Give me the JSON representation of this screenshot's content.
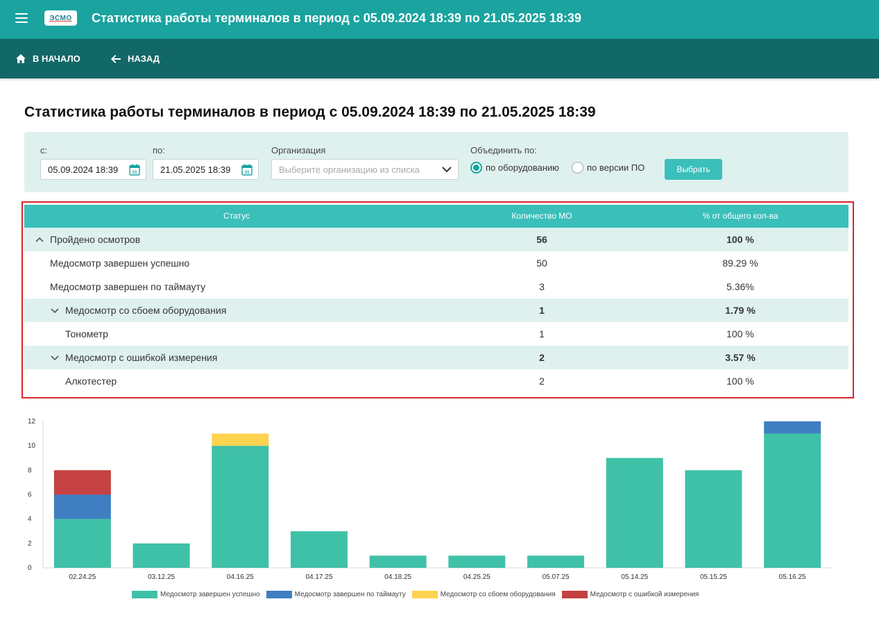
{
  "header": {
    "logo_text": "ЭСМО",
    "title": "Статистика работы терминалов в период с 05.09.2024 18:39 по 21.05.2025 18:39"
  },
  "nav": {
    "home_label": "В НАЧАЛО",
    "back_label": "НАЗАД"
  },
  "page": {
    "title": "Статистика работы терминалов в период с 05.09.2024 18:39 по 21.05.2025 18:39"
  },
  "filters": {
    "from_label": "с:",
    "from_value": "05.09.2024 18:39",
    "to_label": "по:",
    "to_value": "21.05.2025 18:39",
    "org_label": "Организация",
    "org_placeholder": "Выберите организацию из списка",
    "group_label": "Объединить по:",
    "radio_equipment": "по оборудованию",
    "radio_software": "по версии ПО",
    "selected": "по оборудованию",
    "submit_label": "Выбрать"
  },
  "table": {
    "headers": [
      "Статус",
      "Количество МО",
      "% от общего кол-ва"
    ],
    "rows": [
      {
        "name": "Пройдено осмотров",
        "count": "56",
        "percent": "100 %",
        "type": "group",
        "level": 0,
        "expanded": true
      },
      {
        "name": "Медосмотр завершен успешно",
        "count": "50",
        "percent": "89.29 %",
        "type": "item",
        "level": 1
      },
      {
        "name": "Медосмотр завершен по таймауту",
        "count": "3",
        "percent": "5.36%",
        "type": "item",
        "level": 1
      },
      {
        "name": "Медосмотр со сбоем оборудования",
        "count": "1",
        "percent": "1.79 %",
        "type": "group",
        "level": 1,
        "expanded": true
      },
      {
        "name": "Тонометр",
        "count": "1",
        "percent": "100 %",
        "type": "item",
        "level": 2
      },
      {
        "name": "Медосмотр с ошибкой измерения",
        "count": "2",
        "percent": "3.57 %",
        "type": "group",
        "level": 1,
        "expanded": true
      },
      {
        "name": "Алкотестер",
        "count": "2",
        "percent": "100 %",
        "type": "item",
        "level": 2
      }
    ]
  },
  "chart_data": {
    "type": "bar",
    "stacked": true,
    "categories": [
      "02.24.25",
      "03.12.25",
      "04.16.25",
      "04.17.25",
      "04.18.25",
      "04.25.25",
      "05.07.25",
      "05.14.25",
      "05.15.25",
      "05.16.25"
    ],
    "series": [
      {
        "name": "Медосмотр завершен успешно",
        "color": "#3fc1a8",
        "values": [
          4,
          2,
          10,
          3,
          1,
          1,
          1,
          9,
          8,
          11
        ]
      },
      {
        "name": "Медосмотр завершен по таймауту",
        "color": "#3f7fc1",
        "values": [
          2,
          0,
          0,
          0,
          0,
          0,
          0,
          0,
          0,
          1
        ]
      },
      {
        "name": "Медосмотр со сбоем оборудования",
        "color": "#ffd24f",
        "values": [
          0,
          0,
          1,
          0,
          0,
          0,
          0,
          0,
          0,
          0
        ]
      },
      {
        "name": "Медосмотр с ошибкой измерения",
        "color": "#c64141",
        "values": [
          2,
          0,
          0,
          0,
          0,
          0,
          0,
          0,
          0,
          0
        ]
      }
    ],
    "ylim": [
      0,
      12
    ],
    "yticks": [
      0,
      2,
      4,
      6,
      8,
      10,
      12
    ],
    "legend": "bottom",
    "grid": false,
    "title": "",
    "xlabel": "",
    "ylabel": ""
  },
  "colors": {
    "topbar": "#1aa39f",
    "navbar": "#126866",
    "accent": "#3bbfba",
    "panel": "#dff1ef",
    "highlight_border": "#d9252a"
  }
}
